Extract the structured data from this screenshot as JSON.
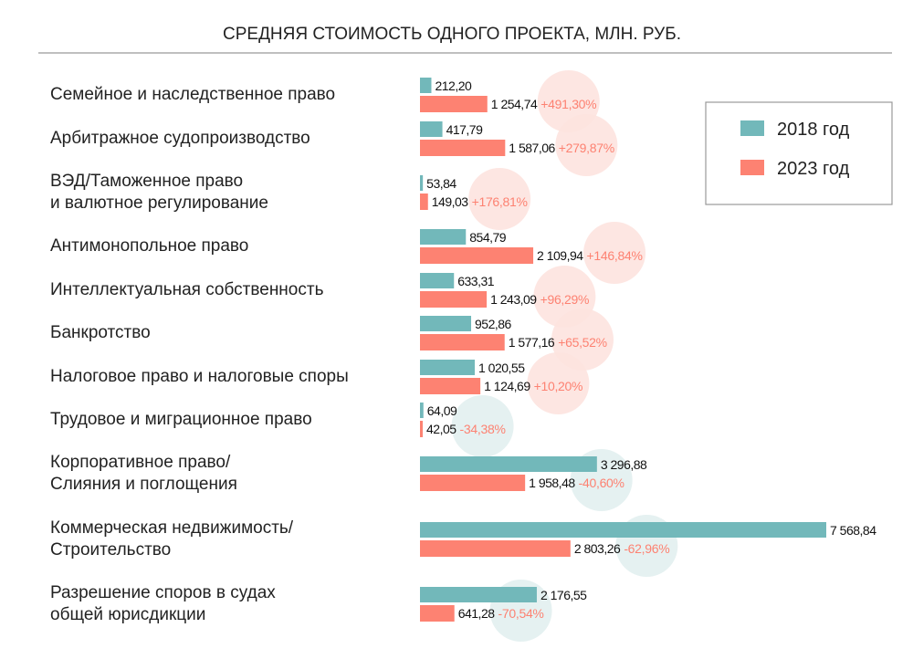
{
  "chart_data": {
    "type": "bar",
    "orientation": "horizontal",
    "title": "СРЕДНЯЯ СТОИМОСТЬ ОДНОГО ПРОЕКТА, МЛН. РУБ.",
    "legend_position": "top-right",
    "colors": {
      "s2018": "#72b8ba",
      "s2023": "#fd8272",
      "pos_circle": "#fde3df",
      "neg_circle": "#e2f0ef",
      "pct_text": "#fd8272"
    },
    "series": [
      {
        "name": "2018 год",
        "values": [
          212.2,
          417.79,
          53.84,
          854.79,
          633.31,
          952.86,
          1020.55,
          64.09,
          3296.88,
          7568.84,
          2176.55
        ],
        "labels": [
          "212,20",
          "417,79",
          "53,84",
          "854,79",
          "633,31",
          "952,86",
          "1 020,55",
          "64,09",
          "3 296,88",
          "7 568,84",
          "2 176,55"
        ]
      },
      {
        "name": "2023 год",
        "values": [
          1254.74,
          1587.06,
          149.03,
          2109.94,
          1243.09,
          1577.16,
          1124.69,
          42.05,
          1958.48,
          2803.26,
          641.28
        ],
        "labels": [
          "1 254,74",
          "1 587,06",
          "149,03",
          "2 109,94",
          "1 243,09",
          "1 577,16",
          "1 124,69",
          "42,05",
          "1 958,48",
          "2 803,26",
          "641,28"
        ]
      }
    ],
    "categories": [
      [
        "Семейное и наследственное право"
      ],
      [
        "Арбитражное судопроизводство"
      ],
      [
        "ВЭД/Таможенное право",
        "и валютное регулирование"
      ],
      [
        "Антимонопольное право"
      ],
      [
        "Интеллектуальная собственность"
      ],
      [
        "Банкротство"
      ],
      [
        "Налоговое право и налоговые споры"
      ],
      [
        "Трудовое и миграционное право"
      ],
      [
        "Корпоративное право/",
        "Слияния и поглощения"
      ],
      [
        "Коммерческая недвижимость/",
        "Строительство"
      ],
      [
        "Разрешение споров в судах",
        "общей юрисдикции"
      ]
    ],
    "changes": [
      "+491,30%",
      "+279,87%",
      "+176,81%",
      "+146,84%",
      "+96,29%",
      "+65,52%",
      "+10,20%",
      "-34,38%",
      "-40,60%",
      "-62,96%",
      "-70,54%"
    ],
    "change_values": [
      491.3,
      279.87,
      176.81,
      146.84,
      96.29,
      65.52,
      10.2,
      -34.38,
      -40.6,
      -62.96,
      -70.54
    ]
  }
}
